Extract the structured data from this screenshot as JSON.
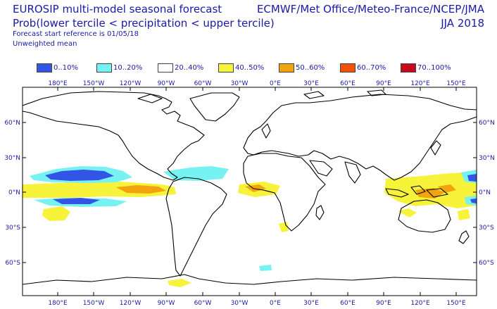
{
  "header": {
    "title_line1": "EUROSIP multi-model seasonal forecast",
    "title_line2": "Prob(lower tercile < precipitation < upper tercile)",
    "forecast_ref": "Forecast start reference is 01/05/18",
    "weighting": "Unweighted mean",
    "centres": "ECMWF/Met Office/Meteo-France/NCEP/JMA",
    "season": "JJA 2018"
  },
  "legend": [
    {
      "label": "0..10%",
      "color": "#3355e6"
    },
    {
      "label": "10..20%",
      "color": "#77f2f2"
    },
    {
      "label": "20..40%",
      "color": "#ffffff"
    },
    {
      "label": "40..50%",
      "color": "#f7f23a"
    },
    {
      "label": "50..60%",
      "color": "#f2a40e"
    },
    {
      "label": "60..70%",
      "color": "#f25208"
    },
    {
      "label": "70..100%",
      "color": "#c8081e"
    }
  ],
  "axes": {
    "lon_labels": [
      "180°E",
      "150°W",
      "120°W",
      "90°W",
      "60°W",
      "30°W",
      "0°E",
      "30°E",
      "60°E",
      "90°E",
      "120°E",
      "150°E"
    ],
    "lat_labels": [
      "60°N",
      "30°N",
      "0°N",
      "30°S",
      "60°S"
    ]
  },
  "colors": {
    "text": "#1a1aa6",
    "coast": "#000000",
    "frame": "#000000"
  }
}
